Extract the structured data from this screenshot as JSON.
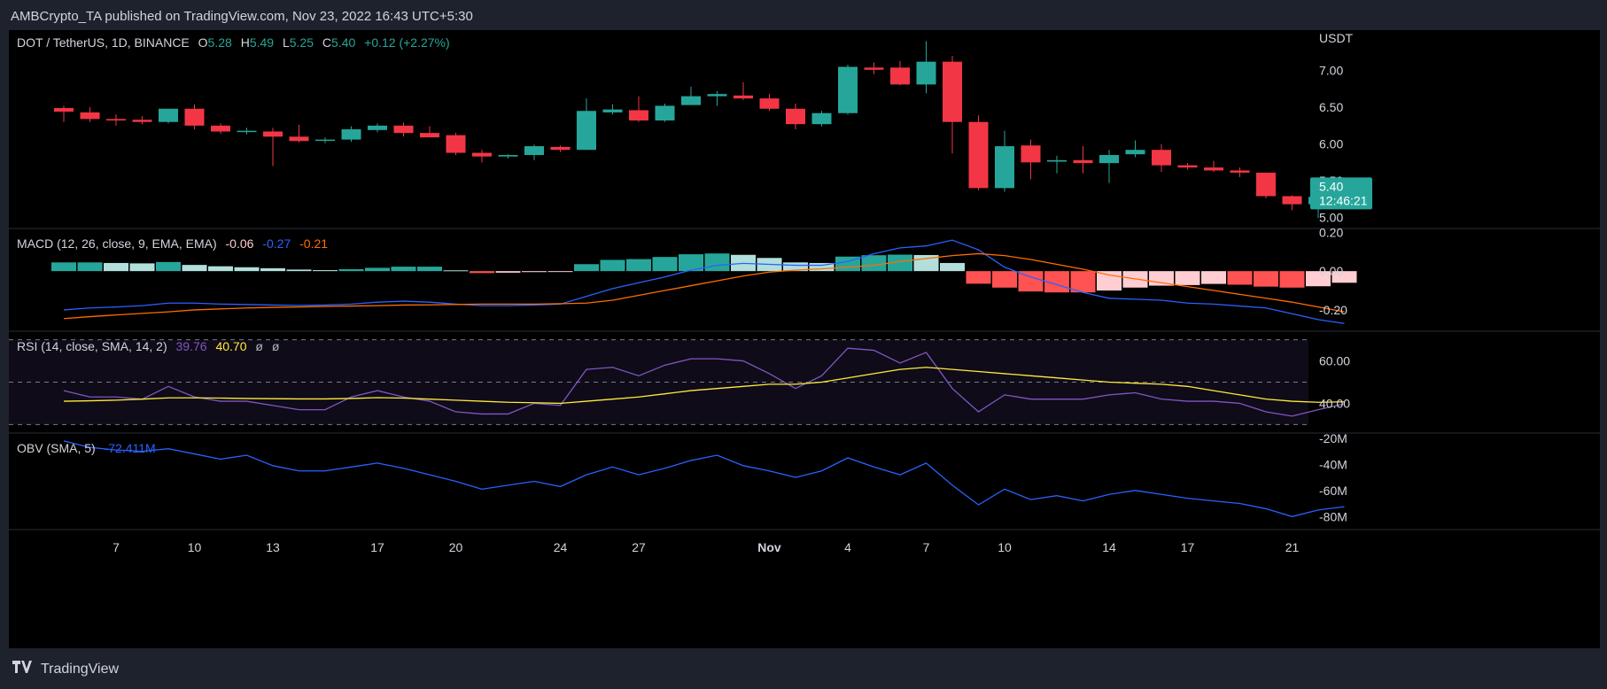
{
  "byline": "AMBCrypto_TA published on TradingView.com, Nov 23, 2022 16:43 UTC+5:30",
  "footer": {
    "brand": "TradingView",
    "logo_icon": "tradingview-logo-icon"
  },
  "colors": {
    "up": "#26a69a",
    "down": "#f23645",
    "macd": "#2962ff",
    "signal": "#ff6d00",
    "rsi": "#7e57c2",
    "rsi_ma": "#ffeb3b",
    "obv": "#2962ff",
    "hist_up_strong": "#26a69a",
    "hist_up_weak": "#b2dfdb",
    "hist_down_strong": "#ff5252",
    "hist_down_weak": "#ffcdd2"
  },
  "main": {
    "symbol": "DOT / TetherUS, 1D, BINANCE",
    "o_label": "O",
    "o_value": "5.28",
    "h_label": "H",
    "h_value": "5.49",
    "l_label": "L",
    "l_value": "5.25",
    "c_label": "C",
    "c_value": "5.40",
    "change": "+0.12 (+2.27%)",
    "currency": "USDT",
    "last_price": "5.40",
    "countdown": "12:46:21"
  },
  "macd": {
    "label": "MACD (12, 26, close, 9, EMA, EMA)",
    "hist": "-0.06",
    "macd": "-0.27",
    "signal": "-0.21"
  },
  "rsi": {
    "label": "RSI (14, close, SMA, 14, 2)",
    "rsi": "39.76",
    "ma": "40.70",
    "extra1": "ø",
    "extra2": "ø"
  },
  "obv": {
    "label": "OBV (SMA, 5)",
    "value": "-72.411M"
  },
  "chart_data": [
    {
      "type": "candlestick",
      "title": "DOT / TetherUS, 1D, BINANCE",
      "ylabel": "USDT",
      "ylim": [
        4.85,
        7.55
      ],
      "yticks": [
        "7.00",
        "6.50",
        "6.00",
        "5.50",
        "5.00"
      ],
      "x_ticks": [
        {
          "i": 2,
          "label": "7"
        },
        {
          "i": 5,
          "label": "10"
        },
        {
          "i": 8,
          "label": "13"
        },
        {
          "i": 12,
          "label": "17"
        },
        {
          "i": 15,
          "label": "20"
        },
        {
          "i": 19,
          "label": "24"
        },
        {
          "i": 22,
          "label": "27"
        },
        {
          "i": 27,
          "label": "Nov"
        },
        {
          "i": 30,
          "label": "4"
        },
        {
          "i": 33,
          "label": "7"
        },
        {
          "i": 36,
          "label": "10"
        },
        {
          "i": 40,
          "label": "14"
        },
        {
          "i": 43,
          "label": "17"
        },
        {
          "i": 47,
          "label": "21"
        }
      ],
      "candles": [
        {
          "o": 6.49,
          "h": 6.52,
          "l": 6.3,
          "c": 6.44
        },
        {
          "o": 6.43,
          "h": 6.5,
          "l": 6.3,
          "c": 6.34
        },
        {
          "o": 6.34,
          "h": 6.4,
          "l": 6.25,
          "c": 6.32
        },
        {
          "o": 6.33,
          "h": 6.38,
          "l": 6.27,
          "c": 6.3
        },
        {
          "o": 6.3,
          "h": 6.48,
          "l": 6.28,
          "c": 6.48
        },
        {
          "o": 6.48,
          "h": 6.54,
          "l": 6.2,
          "c": 6.25
        },
        {
          "o": 6.25,
          "h": 6.28,
          "l": 6.14,
          "c": 6.17
        },
        {
          "o": 6.17,
          "h": 6.22,
          "l": 6.13,
          "c": 6.18
        },
        {
          "o": 6.17,
          "h": 6.22,
          "l": 5.7,
          "c": 6.1
        },
        {
          "o": 6.1,
          "h": 6.26,
          "l": 6.02,
          "c": 6.04
        },
        {
          "o": 6.05,
          "h": 6.09,
          "l": 6.01,
          "c": 6.06
        },
        {
          "o": 6.06,
          "h": 6.24,
          "l": 6.03,
          "c": 6.2
        },
        {
          "o": 6.19,
          "h": 6.28,
          "l": 6.16,
          "c": 6.25
        },
        {
          "o": 6.25,
          "h": 6.29,
          "l": 6.1,
          "c": 6.15
        },
        {
          "o": 6.15,
          "h": 6.24,
          "l": 6.1,
          "c": 6.09
        },
        {
          "o": 6.12,
          "h": 6.15,
          "l": 5.85,
          "c": 5.88
        },
        {
          "o": 5.88,
          "h": 5.92,
          "l": 5.75,
          "c": 5.83
        },
        {
          "o": 5.83,
          "h": 5.86,
          "l": 5.8,
          "c": 5.85
        },
        {
          "o": 5.85,
          "h": 5.99,
          "l": 5.78,
          "c": 5.97
        },
        {
          "o": 5.96,
          "h": 5.98,
          "l": 5.89,
          "c": 5.92
        },
        {
          "o": 5.92,
          "h": 6.62,
          "l": 5.92,
          "c": 6.45
        },
        {
          "o": 6.43,
          "h": 6.54,
          "l": 6.4,
          "c": 6.47
        },
        {
          "o": 6.46,
          "h": 6.65,
          "l": 6.3,
          "c": 6.32
        },
        {
          "o": 6.32,
          "h": 6.55,
          "l": 6.3,
          "c": 6.52
        },
        {
          "o": 6.53,
          "h": 6.78,
          "l": 6.53,
          "c": 6.65
        },
        {
          "o": 6.65,
          "h": 6.72,
          "l": 6.52,
          "c": 6.68
        },
        {
          "o": 6.66,
          "h": 6.84,
          "l": 6.6,
          "c": 6.62
        },
        {
          "o": 6.62,
          "h": 6.68,
          "l": 6.45,
          "c": 6.48
        },
        {
          "o": 6.48,
          "h": 6.55,
          "l": 6.2,
          "c": 6.27
        },
        {
          "o": 6.27,
          "h": 6.45,
          "l": 6.24,
          "c": 6.42
        },
        {
          "o": 6.42,
          "h": 7.08,
          "l": 6.4,
          "c": 7.05
        },
        {
          "o": 7.04,
          "h": 7.11,
          "l": 6.95,
          "c": 7.01
        },
        {
          "o": 7.04,
          "h": 7.13,
          "l": 6.8,
          "c": 6.81
        },
        {
          "o": 6.81,
          "h": 7.4,
          "l": 6.69,
          "c": 7.12
        },
        {
          "o": 7.12,
          "h": 7.2,
          "l": 5.87,
          "c": 6.3
        },
        {
          "o": 6.3,
          "h": 6.39,
          "l": 5.37,
          "c": 5.4
        },
        {
          "o": 5.4,
          "h": 6.18,
          "l": 5.35,
          "c": 5.97
        },
        {
          "o": 5.98,
          "h": 6.06,
          "l": 5.52,
          "c": 5.75
        },
        {
          "o": 5.76,
          "h": 5.84,
          "l": 5.6,
          "c": 5.78
        },
        {
          "o": 5.78,
          "h": 5.97,
          "l": 5.6,
          "c": 5.74
        },
        {
          "o": 5.74,
          "h": 5.92,
          "l": 5.47,
          "c": 5.85
        },
        {
          "o": 5.86,
          "h": 6.05,
          "l": 5.82,
          "c": 5.92
        },
        {
          "o": 5.92,
          "h": 6.0,
          "l": 5.62,
          "c": 5.71
        },
        {
          "o": 5.71,
          "h": 5.74,
          "l": 5.65,
          "c": 5.68
        },
        {
          "o": 5.68,
          "h": 5.77,
          "l": 5.62,
          "c": 5.64
        },
        {
          "o": 5.64,
          "h": 5.68,
          "l": 5.55,
          "c": 5.61
        },
        {
          "o": 5.61,
          "h": 5.61,
          "l": 5.26,
          "c": 5.29
        },
        {
          "o": 5.29,
          "h": 5.3,
          "l": 5.1,
          "c": 5.18
        },
        {
          "o": 5.18,
          "h": 5.32,
          "l": 4.99,
          "c": 5.28
        },
        {
          "o": 5.28,
          "h": 5.49,
          "l": 5.25,
          "c": 5.4
        }
      ]
    },
    {
      "type": "bar",
      "title": "MACD (12, 26, close, 9, EMA, EMA)",
      "ylim": [
        -0.31,
        0.22
      ],
      "yticks": [
        "0.20",
        "0.00",
        "-0.20"
      ],
      "series": [
        {
          "name": "Histogram",
          "values": [
            0.045,
            0.045,
            0.042,
            0.04,
            0.047,
            0.032,
            0.025,
            0.02,
            0.015,
            0.008,
            0.005,
            0.01,
            0.017,
            0.023,
            0.023,
            0.004,
            -0.01,
            -0.008,
            -0.005,
            -0.004,
            0.036,
            0.058,
            0.062,
            0.073,
            0.087,
            0.091,
            0.084,
            0.068,
            0.045,
            0.042,
            0.075,
            0.082,
            0.085,
            0.083,
            0.042,
            -0.065,
            -0.085,
            -0.105,
            -0.11,
            -0.11,
            -0.1,
            -0.085,
            -0.075,
            -0.072,
            -0.066,
            -0.07,
            -0.08,
            -0.085,
            -0.078,
            -0.06
          ]
        },
        {
          "name": "MACD",
          "values": [
            -0.2,
            -0.19,
            -0.185,
            -0.178,
            -0.165,
            -0.165,
            -0.17,
            -0.172,
            -0.175,
            -0.177,
            -0.175,
            -0.17,
            -0.16,
            -0.155,
            -0.16,
            -0.17,
            -0.178,
            -0.178,
            -0.175,
            -0.17,
            -0.13,
            -0.09,
            -0.06,
            -0.03,
            0.005,
            0.03,
            0.04,
            0.035,
            0.03,
            0.03,
            0.05,
            0.09,
            0.12,
            0.13,
            0.16,
            0.11,
            0.02,
            -0.03,
            -0.07,
            -0.11,
            -0.14,
            -0.145,
            -0.15,
            -0.165,
            -0.17,
            -0.18,
            -0.19,
            -0.22,
            -0.25,
            -0.27
          ]
        },
        {
          "name": "Signal",
          "values": [
            -0.245,
            -0.235,
            -0.226,
            -0.218,
            -0.21,
            -0.2,
            -0.195,
            -0.19,
            -0.187,
            -0.185,
            -0.182,
            -0.18,
            -0.178,
            -0.175,
            -0.174,
            -0.172,
            -0.17,
            -0.17,
            -0.17,
            -0.168,
            -0.165,
            -0.15,
            -0.125,
            -0.1,
            -0.075,
            -0.05,
            -0.025,
            -0.005,
            0.005,
            0.012,
            0.02,
            0.03,
            0.05,
            0.065,
            0.08,
            0.09,
            0.08,
            0.06,
            0.035,
            0.01,
            -0.02,
            -0.04,
            -0.06,
            -0.08,
            -0.1,
            -0.12,
            -0.14,
            -0.16,
            -0.185,
            -0.21
          ]
        }
      ]
    },
    {
      "type": "line",
      "title": "RSI (14, close, SMA, 14, 2)",
      "ylim": [
        26,
        74
      ],
      "yticks": [
        "60.00",
        "40.00"
      ],
      "bands": [
        70,
        50,
        30
      ],
      "series": [
        {
          "name": "RSI",
          "values": [
            46,
            43,
            43,
            42,
            48,
            43,
            41,
            41,
            39,
            37,
            37,
            43,
            46,
            43,
            41,
            36,
            35,
            35,
            40,
            39,
            56,
            57,
            53,
            58,
            61,
            61,
            60,
            54,
            47,
            53,
            66,
            65,
            59,
            64,
            47,
            36,
            44,
            42,
            42,
            42,
            44,
            45,
            42,
            41,
            41,
            40,
            36,
            34,
            37,
            39.76
          ]
        },
        {
          "name": "RSI-based MA",
          "values": [
            41,
            41.2,
            41.5,
            42,
            42.6,
            42.6,
            42.5,
            42.3,
            42.2,
            42.1,
            42.1,
            42.3,
            42.7,
            42.5,
            42,
            41.5,
            41,
            40.5,
            40.3,
            40,
            41,
            42,
            43,
            44.5,
            46,
            47,
            48,
            49,
            49,
            50,
            52,
            54,
            56,
            57,
            56,
            55,
            54,
            53,
            52,
            51,
            50,
            49.5,
            49,
            48,
            46,
            44,
            42,
            41,
            40.5,
            40.7
          ]
        }
      ]
    },
    {
      "type": "line",
      "title": "OBV (SMA, 5)",
      "ylim": [
        -90,
        -16
      ],
      "yticks": [
        "-20M",
        "-40M",
        "-60M",
        "-80M"
      ],
      "series": [
        {
          "name": "OBV",
          "values": [
            -22,
            -27,
            -29,
            -30,
            -28,
            -32,
            -36,
            -33,
            -41,
            -45,
            -45,
            -42,
            -39,
            -43,
            -48,
            -53,
            -59,
            -56,
            -53,
            -57,
            -48,
            -42,
            -48,
            -43,
            -37,
            -33,
            -41,
            -45,
            -50,
            -45,
            -35,
            -42,
            -48,
            -39,
            -56,
            -71,
            -59,
            -67,
            -64,
            -68,
            -63,
            -60,
            -63,
            -66,
            -68,
            -70,
            -74,
            -80,
            -75,
            -72.411
          ]
        }
      ]
    }
  ]
}
